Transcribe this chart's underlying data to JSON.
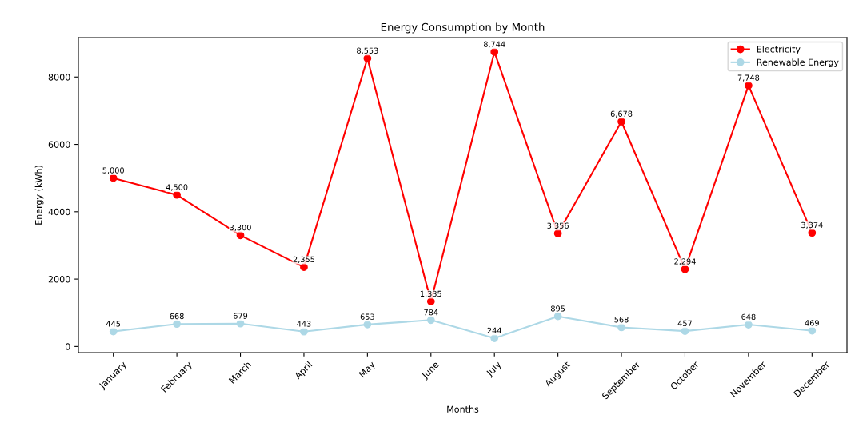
{
  "chart_data": {
    "type": "line",
    "title": "Energy Consumption by Month",
    "xlabel": "Months",
    "ylabel": "Energy (kWh)",
    "categories": [
      "January",
      "February",
      "March",
      "April",
      "May",
      "June",
      "July",
      "August",
      "September",
      "October",
      "November",
      "December"
    ],
    "series": [
      {
        "name": "Electricity",
        "color": "#ff0000",
        "values": [
          5000,
          4500,
          3300,
          2355,
          8553,
          1335,
          8744,
          3356,
          6678,
          2294,
          7748,
          3374
        ],
        "value_labels": [
          "5,000",
          "4,500",
          "3,300",
          "2,355",
          "8,553",
          "1,335",
          "8,744",
          "3,356",
          "6,678",
          "2,294",
          "7,748",
          "3,374"
        ]
      },
      {
        "name": "Renewable Energy",
        "color": "#add8e6",
        "values": [
          445,
          668,
          679,
          443,
          653,
          784,
          244,
          895,
          568,
          457,
          648,
          469
        ],
        "value_labels": [
          "445",
          "668",
          "679",
          "443",
          "653",
          "784",
          "244",
          "895",
          "568",
          "457",
          "648",
          "469"
        ]
      }
    ],
    "ylim": [
      -181,
      9169
    ],
    "yticks": [
      0,
      2000,
      4000,
      6000,
      8000
    ],
    "marker": "circle",
    "line_style": "solid",
    "legend": "top right",
    "grid": false
  }
}
